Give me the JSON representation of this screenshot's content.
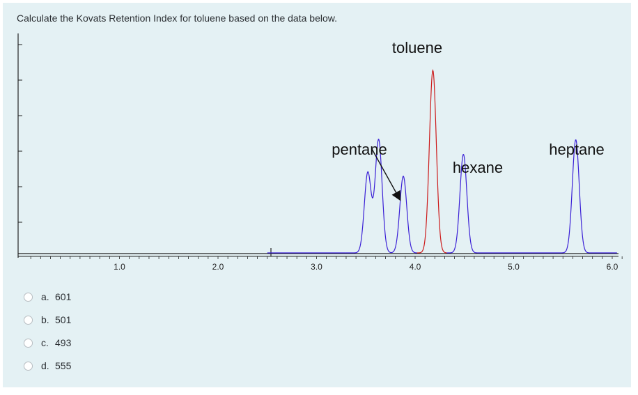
{
  "question": {
    "text": "Calculate the Kovats Retention Index for toluene based on the data below."
  },
  "chart_data": {
    "type": "line",
    "x_ticks": [
      "1.0",
      "2.0",
      "3.0",
      "4.0",
      "5.0",
      "6.0"
    ],
    "xlim": [
      0.0,
      6.0
    ],
    "peaks": [
      {
        "name": "",
        "x": 3.52,
        "height": 0.44,
        "color": "#3a1fd6"
      },
      {
        "name": "pentane",
        "x": 3.63,
        "height": 0.62,
        "color": "#3a1fd6"
      },
      {
        "name": "",
        "x": 3.88,
        "height": 0.42,
        "color": "#3a1fd6"
      },
      {
        "name": "toluene",
        "x": 4.18,
        "height": 1.0,
        "color": "#cc1a1a"
      },
      {
        "name": "hexane",
        "x": 4.49,
        "height": 0.54,
        "color": "#3a1fd6"
      },
      {
        "name": "heptane",
        "x": 5.63,
        "height": 0.62,
        "color": "#3a1fd6"
      }
    ],
    "labels": [
      {
        "text": "toluene",
        "x": 4.18
      },
      {
        "text": "pentane",
        "x": 3.63
      },
      {
        "text": "hexane",
        "x": 4.49
      },
      {
        "text": "heptane",
        "x": 5.63
      }
    ],
    "colors": {
      "hydrocarbon": "#3a1fd6",
      "analyte": "#cc1a1a"
    }
  },
  "options": [
    {
      "letter": "a.",
      "value": "601"
    },
    {
      "letter": "b.",
      "value": "501"
    },
    {
      "letter": "c.",
      "value": "493"
    },
    {
      "letter": "d.",
      "value": "555"
    }
  ]
}
